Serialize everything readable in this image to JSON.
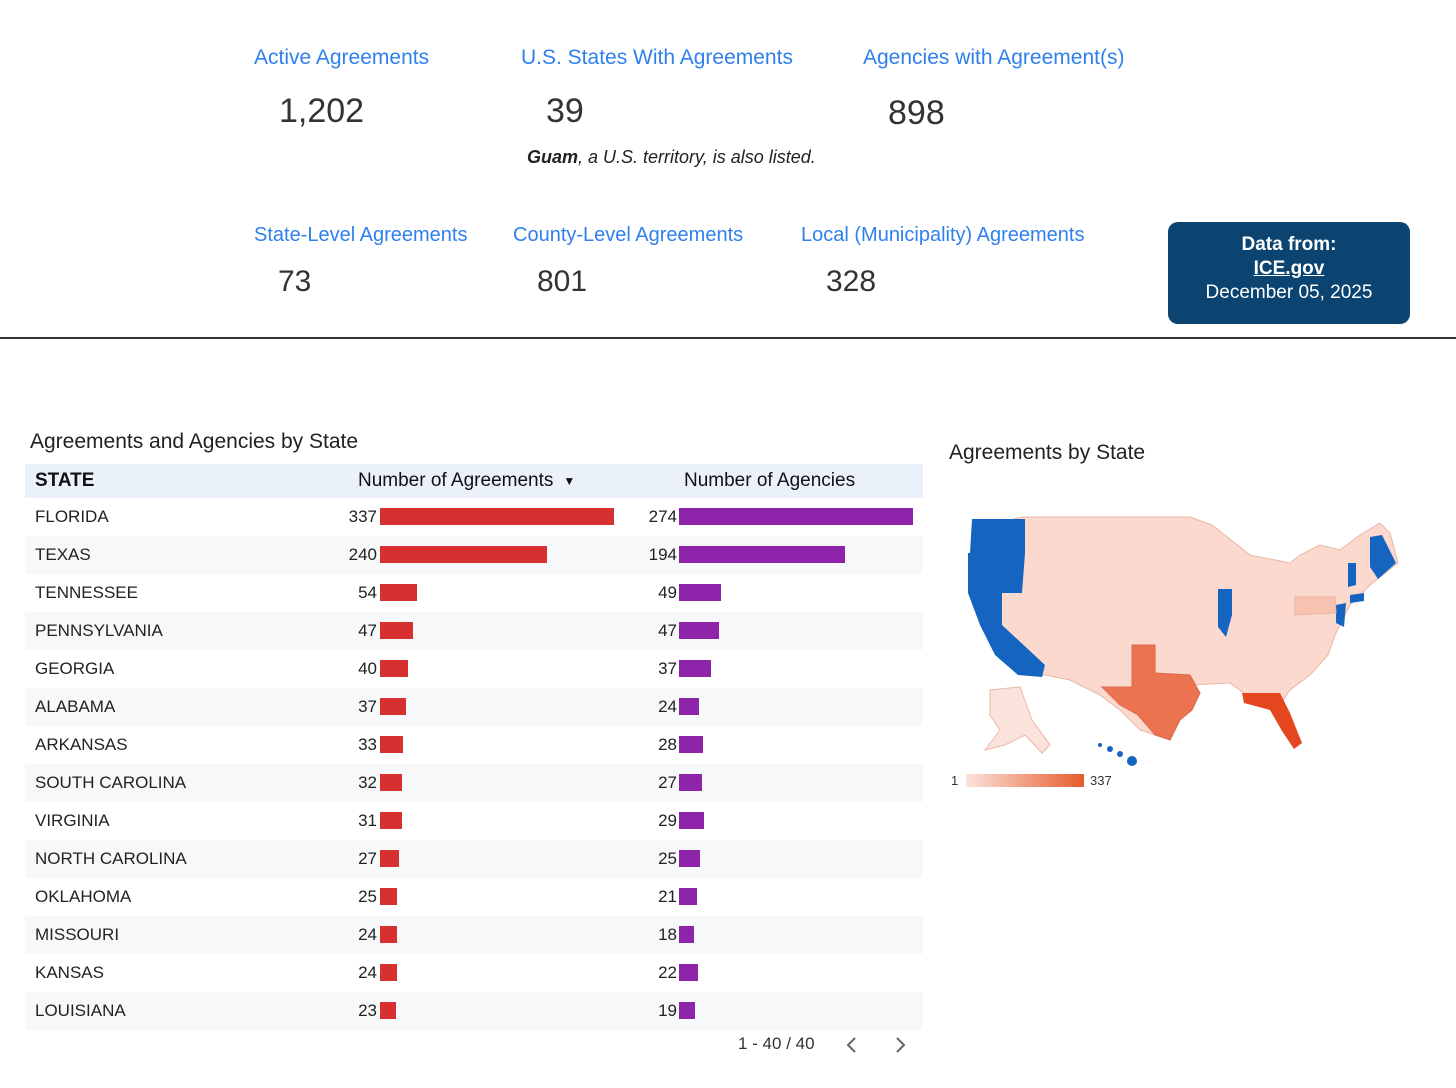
{
  "stats": [
    {
      "label": "Active Agreements",
      "value": "1,202"
    },
    {
      "label": "U.S. States With Agreements",
      "value": "39"
    },
    {
      "label": "Agencies with Agreement(s)",
      "value": "898"
    },
    {
      "label": "State-Level Agreements",
      "value": "73"
    },
    {
      "label": "County-Level Agreements",
      "value": "801"
    },
    {
      "label": "Local (Municipality) Agreements",
      "value": "328"
    }
  ],
  "note": {
    "bold": "Guam",
    "rest": ", a U.S. territory, is also listed."
  },
  "source": {
    "label": "Data from:",
    "link": "ICE.gov",
    "date": "December 05, 2025"
  },
  "table": {
    "title": "Agreements and Agencies by State",
    "headers": {
      "state": "STATE",
      "agreements": "Number of Agreements",
      "agencies": "Number of Agencies"
    },
    "rows": [
      {
        "state": "FLORIDA",
        "agreements": 337,
        "agencies": 274
      },
      {
        "state": "TEXAS",
        "agreements": 240,
        "agencies": 194
      },
      {
        "state": "TENNESSEE",
        "agreements": 54,
        "agencies": 49
      },
      {
        "state": "PENNSYLVANIA",
        "agreements": 47,
        "agencies": 47
      },
      {
        "state": "GEORGIA",
        "agreements": 40,
        "agencies": 37
      },
      {
        "state": "ALABAMA",
        "agreements": 37,
        "agencies": 24
      },
      {
        "state": "ARKANSAS",
        "agreements": 33,
        "agencies": 28
      },
      {
        "state": "SOUTH CAROLINA",
        "agreements": 32,
        "agencies": 27
      },
      {
        "state": "VIRGINIA",
        "agreements": 31,
        "agencies": 29
      },
      {
        "state": "NORTH CAROLINA",
        "agreements": 27,
        "agencies": 25
      },
      {
        "state": "OKLAHOMA",
        "agreements": 25,
        "agencies": 21
      },
      {
        "state": "MISSOURI",
        "agreements": 24,
        "agencies": 18
      },
      {
        "state": "KANSAS",
        "agreements": 24,
        "agencies": 22
      },
      {
        "state": "LOUISIANA",
        "agreements": 23,
        "agencies": 19
      }
    ],
    "pager": "1 - 40 / 40"
  },
  "map": {
    "title": "Agreements by State",
    "legend_min": "1",
    "legend_max": "337",
    "colors": {
      "no_data": "#1565c0",
      "low": "#fbe3dc",
      "high": "#e55b2b",
      "texas": "#ec7350",
      "florida": "#e4461f",
      "pa": "#f7c2b0"
    }
  },
  "colors": {
    "accent": "#2f80ed",
    "agreements_bar": "#d63031",
    "agencies_bar": "#8e24aa",
    "source_bg": "#0b4470"
  }
}
